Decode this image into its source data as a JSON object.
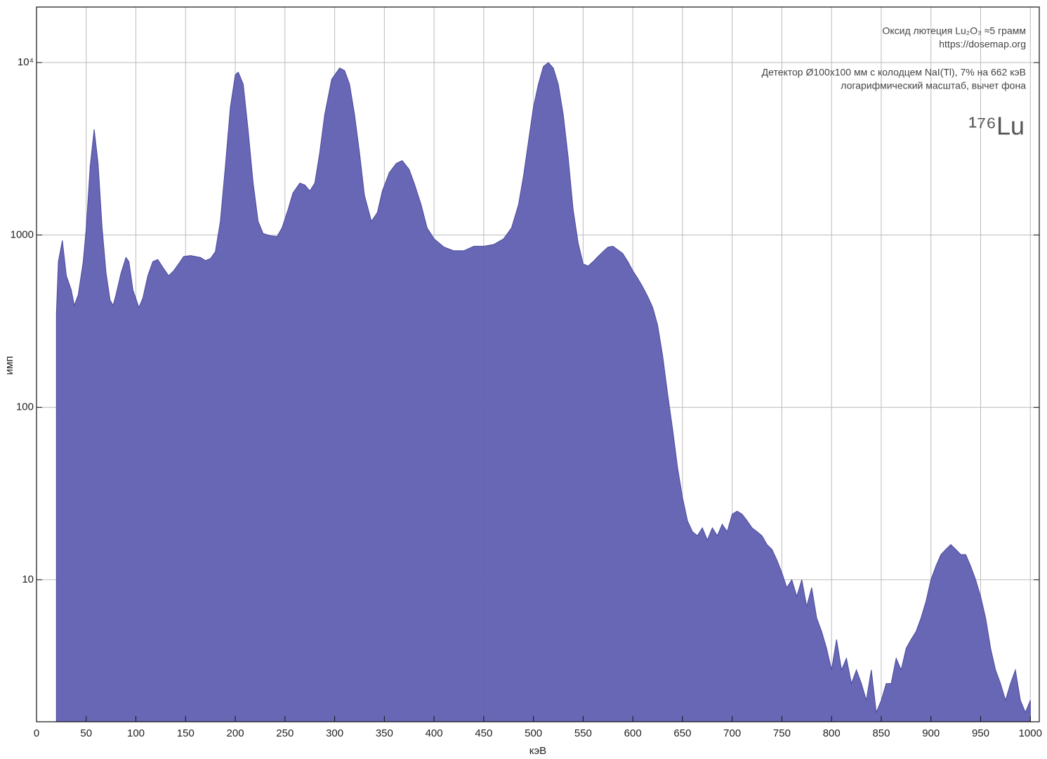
{
  "chart_data": {
    "type": "area",
    "annotations": [
      "Оксид лютеция Lu₂O₃ ≈5 грамм",
      "https://dosemap.org",
      "Детектор Ø100x100 мм с колодцем NaI(Tl), 7% на 662 кэВ",
      "логарифмический масштаб, вычет фона",
      "¹⁷⁶Lu"
    ],
    "x_label": "кэВ",
    "y_label": "имп",
    "x": [
      20,
      22,
      26,
      30,
      35,
      38,
      42,
      47,
      50,
      54,
      58,
      62,
      66,
      70,
      74,
      77,
      80,
      85,
      90,
      93,
      97,
      103,
      107,
      112,
      117,
      122,
      127,
      133,
      138,
      143,
      148,
      155,
      165,
      170,
      175,
      180,
      185,
      190,
      195,
      200,
      203,
      208,
      213,
      218,
      223,
      228,
      235,
      242,
      247,
      253,
      258,
      265,
      270,
      275,
      280,
      285,
      290,
      297,
      305,
      310,
      315,
      320,
      325,
      330,
      337,
      343,
      348,
      355,
      362,
      368,
      375,
      380,
      387,
      393,
      400,
      410,
      420,
      430,
      440,
      450,
      460,
      470,
      478,
      485,
      490,
      495,
      500,
      505,
      510,
      515,
      520,
      525,
      530,
      535,
      540,
      545,
      550,
      555,
      560,
      565,
      570,
      575,
      580,
      585,
      590,
      595,
      600,
      605,
      610,
      615,
      620,
      625,
      630,
      635,
      640,
      645,
      650,
      655,
      660,
      665,
      670,
      675,
      680,
      685,
      690,
      695,
      700,
      705,
      710,
      715,
      720,
      725,
      730,
      735,
      740,
      745,
      750,
      755,
      760,
      765,
      770,
      775,
      780,
      785,
      790,
      795,
      800,
      805,
      810,
      815,
      820,
      825,
      830,
      835,
      840,
      845,
      850,
      855,
      860,
      865,
      870,
      875,
      880,
      885,
      890,
      895,
      900,
      905,
      910,
      915,
      920,
      925,
      930,
      935,
      940,
      945,
      950,
      955,
      960,
      965,
      970,
      975,
      980,
      985,
      990,
      995,
      1000
    ],
    "values": [
      350,
      700,
      930,
      580,
      480,
      390,
      450,
      700,
      1100,
      2500,
      4100,
      2600,
      1100,
      600,
      420,
      390,
      450,
      600,
      740,
      700,
      480,
      380,
      430,
      580,
      700,
      720,
      650,
      580,
      620,
      680,
      750,
      760,
      740,
      710,
      730,
      800,
      1200,
      2500,
      5500,
      8500,
      8800,
      7500,
      4000,
      2000,
      1200,
      1020,
      990,
      980,
      1100,
      1400,
      1750,
      2000,
      1950,
      1800,
      2000,
      3000,
      5000,
      8000,
      9300,
      9000,
      7500,
      5000,
      3000,
      1700,
      1200,
      1350,
      1800,
      2300,
      2600,
      2700,
      2400,
      2000,
      1500,
      1100,
      950,
      850,
      810,
      810,
      860,
      860,
      880,
      950,
      1100,
      1500,
      2200,
      3500,
      5500,
      7500,
      9500,
      10000,
      9300,
      7500,
      5000,
      2800,
      1400,
      900,
      680,
      660,
      700,
      750,
      800,
      850,
      860,
      820,
      780,
      700,
      620,
      560,
      500,
      440,
      380,
      300,
      200,
      120,
      75,
      45,
      30,
      22,
      19,
      18,
      20,
      17,
      20,
      18,
      21,
      19,
      24,
      25,
      24,
      22,
      20,
      19,
      18,
      16,
      15,
      13,
      11,
      9,
      10,
      8,
      10,
      7,
      9,
      6,
      5,
      4,
      3,
      4.5,
      3,
      3.5,
      2.5,
      3,
      2.5,
      2,
      3,
      1.7,
      2,
      2.5,
      2.5,
      3.5,
      3,
      4,
      4.5,
      5,
      6,
      7.5,
      10,
      12,
      14,
      15,
      16,
      15,
      14,
      14,
      12,
      10,
      8,
      6,
      4,
      3,
      2.5,
      2,
      2.5,
      3,
      2,
      1.7,
      2
    ],
    "color": "#6464b4",
    "xlim": [
      0,
      1009
    ],
    "xticks": [
      0,
      50,
      100,
      150,
      200,
      250,
      300,
      350,
      400,
      450,
      500,
      550,
      600,
      650,
      700,
      750,
      800,
      850,
      900,
      950,
      1000
    ],
    "ylim": [
      1.5,
      21000
    ],
    "yticks": [
      10,
      100,
      1000,
      {
        "value": 10000,
        "label": "10⁴"
      }
    ],
    "log_y": true,
    "grid": true
  }
}
